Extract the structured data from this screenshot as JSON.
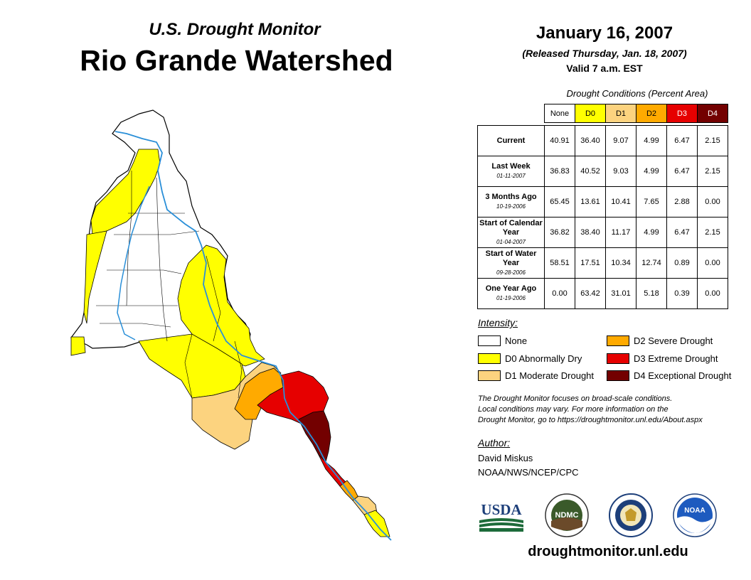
{
  "header": {
    "subtitle": "U.S. Drought Monitor",
    "title": "Rio Grande Watershed"
  },
  "date": {
    "main": "January 16, 2007",
    "released": "(Released Thursday, Jan. 18, 2007)",
    "valid": "Valid 7 a.m. EST"
  },
  "table": {
    "caption": "Drought Conditions (Percent Area)",
    "columns": [
      "None",
      "D0",
      "D1",
      "D2",
      "D3",
      "D4"
    ],
    "column_colors": [
      "#ffffff",
      "#ffff00",
      "#fcd37f",
      "#ffaa00",
      "#e60000",
      "#730000"
    ],
    "rows": [
      {
        "label": "Current",
        "date": "",
        "values": [
          "40.91",
          "36.40",
          "9.07",
          "4.99",
          "6.47",
          "2.15"
        ]
      },
      {
        "label": "Last Week",
        "date": "01-11-2007",
        "values": [
          "36.83",
          "40.52",
          "9.03",
          "4.99",
          "6.47",
          "2.15"
        ]
      },
      {
        "label": "3 Months Ago",
        "date": "10-19-2006",
        "values": [
          "65.45",
          "13.61",
          "10.41",
          "7.65",
          "2.88",
          "0.00"
        ]
      },
      {
        "label": "Start of Calendar Year",
        "date": "01-04-2007",
        "values": [
          "36.82",
          "38.40",
          "11.17",
          "4.99",
          "6.47",
          "2.15"
        ]
      },
      {
        "label": "Start of Water Year",
        "date": "09-28-2006",
        "values": [
          "58.51",
          "17.51",
          "10.34",
          "12.74",
          "0.89",
          "0.00"
        ]
      },
      {
        "label": "One Year Ago",
        "date": "01-19-2006",
        "values": [
          "0.00",
          "63.42",
          "31.01",
          "5.18",
          "0.39",
          "0.00"
        ]
      }
    ]
  },
  "legend": {
    "title": "Intensity:",
    "items": [
      {
        "label": "None",
        "color": "#ffffff"
      },
      {
        "label": "D0 Abnormally Dry",
        "color": "#ffff00"
      },
      {
        "label": "D1 Moderate Drought",
        "color": "#fcd37f"
      },
      {
        "label": "D2 Severe Drought",
        "color": "#ffaa00"
      },
      {
        "label": "D3 Extreme Drought",
        "color": "#e60000"
      },
      {
        "label": "D4 Exceptional Drought",
        "color": "#730000"
      }
    ]
  },
  "footnote": {
    "line1": "The Drought Monitor focuses on broad-scale conditions.",
    "line2": "Local conditions may vary. For more information on the",
    "line3": "Drought Monitor, go to https://droughtmonitor.unl.edu/About.aspx"
  },
  "author": {
    "label": "Author:",
    "name": "David Miskus",
    "org": "NOAA/NWS/NCEP/CPC"
  },
  "logos": {
    "usda": "USDA",
    "ndmc": "NDMC",
    "noaa": "NOAA"
  },
  "website": "droughtmonitor.unl.edu"
}
